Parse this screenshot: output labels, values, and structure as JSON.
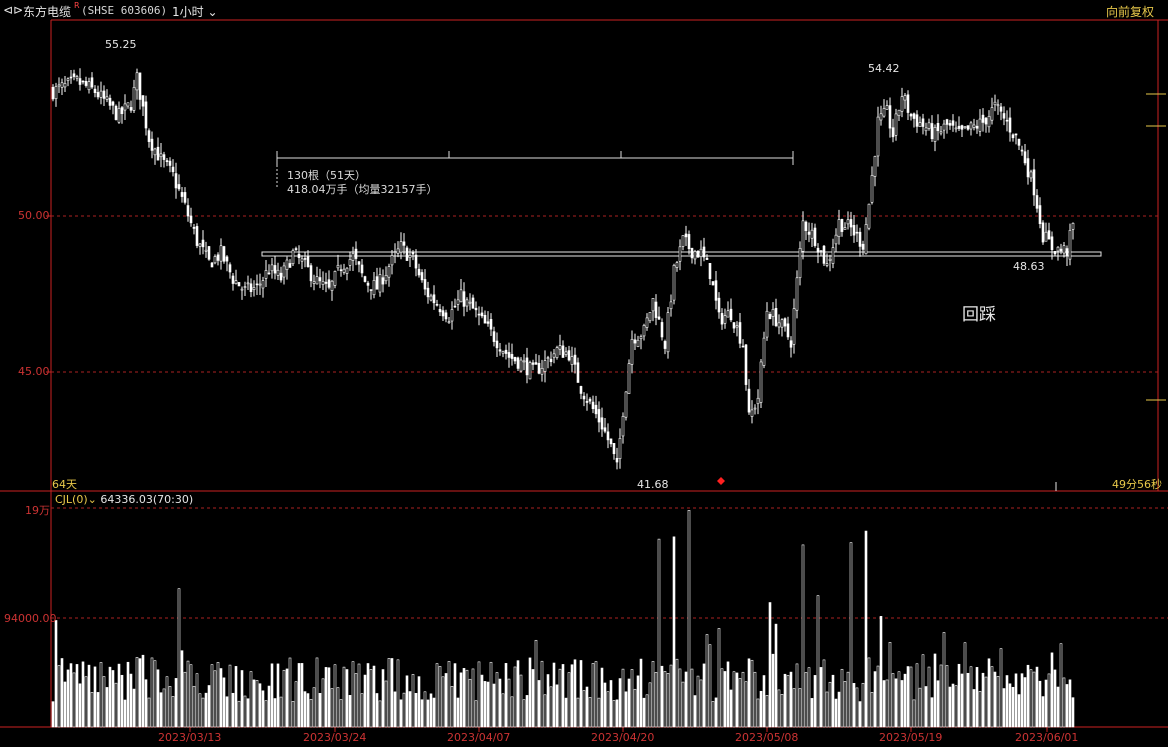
{
  "header": {
    "back_icon": "back-arrows-icon",
    "stock_name": "东方电缆",
    "superscript": "R",
    "code": "(SHSE 603606)",
    "timeframe": "1小时",
    "adjust_mode": "向前复权"
  },
  "price_axis": {
    "labels": [
      "50.00",
      "45.00"
    ],
    "range": [
      41.0,
      56.0
    ]
  },
  "volume_axis": {
    "labels": [
      "19万",
      "94000.00"
    ],
    "max_value": 190000
  },
  "annotations": {
    "high_left": "55.25",
    "high_right": "54.42",
    "low_mid": "41.68",
    "low_right": "48.63",
    "range_bars": "130根（51天）",
    "range_volume": "418.04万手（均量32157手）",
    "pullback": "回踩",
    "days_left": "64天",
    "countdown": "49分56秒"
  },
  "volume_panel": {
    "indicator": "CJL(0)",
    "value": "64336.03(70:30)"
  },
  "x_axis": {
    "dates": [
      "2023/03/13",
      "2023/03/24",
      "2023/04/07",
      "2023/04/20",
      "2023/05/08",
      "2023/05/19",
      "2023/06/01"
    ]
  },
  "colors": {
    "background": "#000000",
    "axis_red": "#cc2222",
    "candle": "#ffffff",
    "label_yellow": "#e8c84a",
    "marker_red": "#ff2020"
  },
  "chart_data": {
    "type": "candlestick",
    "close_anchors": [
      [
        0,
        54.0
      ],
      [
        8,
        54.3
      ],
      [
        14,
        54.0
      ],
      [
        22,
        53.2
      ],
      [
        26,
        53.6
      ],
      [
        28,
        54.4
      ],
      [
        32,
        52.5
      ],
      [
        36,
        51.8
      ],
      [
        40,
        51.3
      ],
      [
        44,
        50.3
      ],
      [
        48,
        49.2
      ],
      [
        52,
        48.5
      ],
      [
        56,
        48.8
      ],
      [
        60,
        48.0
      ],
      [
        64,
        47.6
      ],
      [
        68,
        47.7
      ],
      [
        72,
        48.3
      ],
      [
        76,
        48.0
      ],
      [
        80,
        48.8
      ],
      [
        84,
        48.4
      ],
      [
        88,
        47.9
      ],
      [
        92,
        47.6
      ],
      [
        96,
        48.4
      ],
      [
        100,
        48.7
      ],
      [
        104,
        47.9
      ],
      [
        108,
        47.7
      ],
      [
        112,
        48.4
      ],
      [
        116,
        49.0
      ],
      [
        120,
        48.6
      ],
      [
        124,
        47.6
      ],
      [
        128,
        47.2
      ],
      [
        132,
        46.8
      ],
      [
        136,
        47.4
      ],
      [
        140,
        47.0
      ],
      [
        144,
        46.5
      ],
      [
        148,
        46.0
      ],
      [
        152,
        45.5
      ],
      [
        156,
        45.3
      ],
      [
        160,
        45.0
      ],
      [
        164,
        45.3
      ],
      [
        168,
        45.7
      ],
      [
        172,
        45.6
      ],
      [
        176,
        44.5
      ],
      [
        180,
        43.8
      ],
      [
        183,
        43.3
      ],
      [
        186,
        42.6
      ],
      [
        188,
        41.9
      ],
      [
        190,
        43.8
      ],
      [
        193,
        46.1
      ],
      [
        197,
        46.3
      ],
      [
        200,
        47.3
      ],
      [
        204,
        45.9
      ],
      [
        207,
        48.2
      ],
      [
        210,
        49.2
      ],
      [
        213,
        48.9
      ],
      [
        216,
        48.8
      ],
      [
        219,
        48.2
      ],
      [
        222,
        46.7
      ],
      [
        226,
        46.9
      ],
      [
        230,
        45.9
      ],
      [
        232,
        43.5
      ],
      [
        235,
        44.2
      ],
      [
        238,
        47.0
      ],
      [
        242,
        46.6
      ],
      [
        246,
        46.0
      ],
      [
        250,
        49.8
      ],
      [
        254,
        49.3
      ],
      [
        258,
        48.4
      ],
      [
        262,
        49.8
      ],
      [
        266,
        49.6
      ],
      [
        270,
        49.1
      ],
      [
        272,
        50.4
      ],
      [
        275,
        53.0
      ],
      [
        278,
        53.3
      ],
      [
        280,
        52.6
      ],
      [
        283,
        53.9
      ],
      [
        286,
        53.2
      ],
      [
        290,
        52.9
      ],
      [
        294,
        52.6
      ],
      [
        298,
        52.9
      ],
      [
        302,
        52.6
      ],
      [
        306,
        52.8
      ],
      [
        310,
        53.0
      ],
      [
        314,
        53.5
      ],
      [
        318,
        53.0
      ],
      [
        321,
        52.5
      ],
      [
        324,
        51.8
      ],
      [
        327,
        50.9
      ],
      [
        330,
        49.4
      ],
      [
        333,
        49.0
      ],
      [
        336,
        48.9
      ],
      [
        338,
        48.9
      ],
      [
        340,
        49.7
      ]
    ],
    "volume_note": "volume values in shares (手), scaled by max 19万"
  }
}
